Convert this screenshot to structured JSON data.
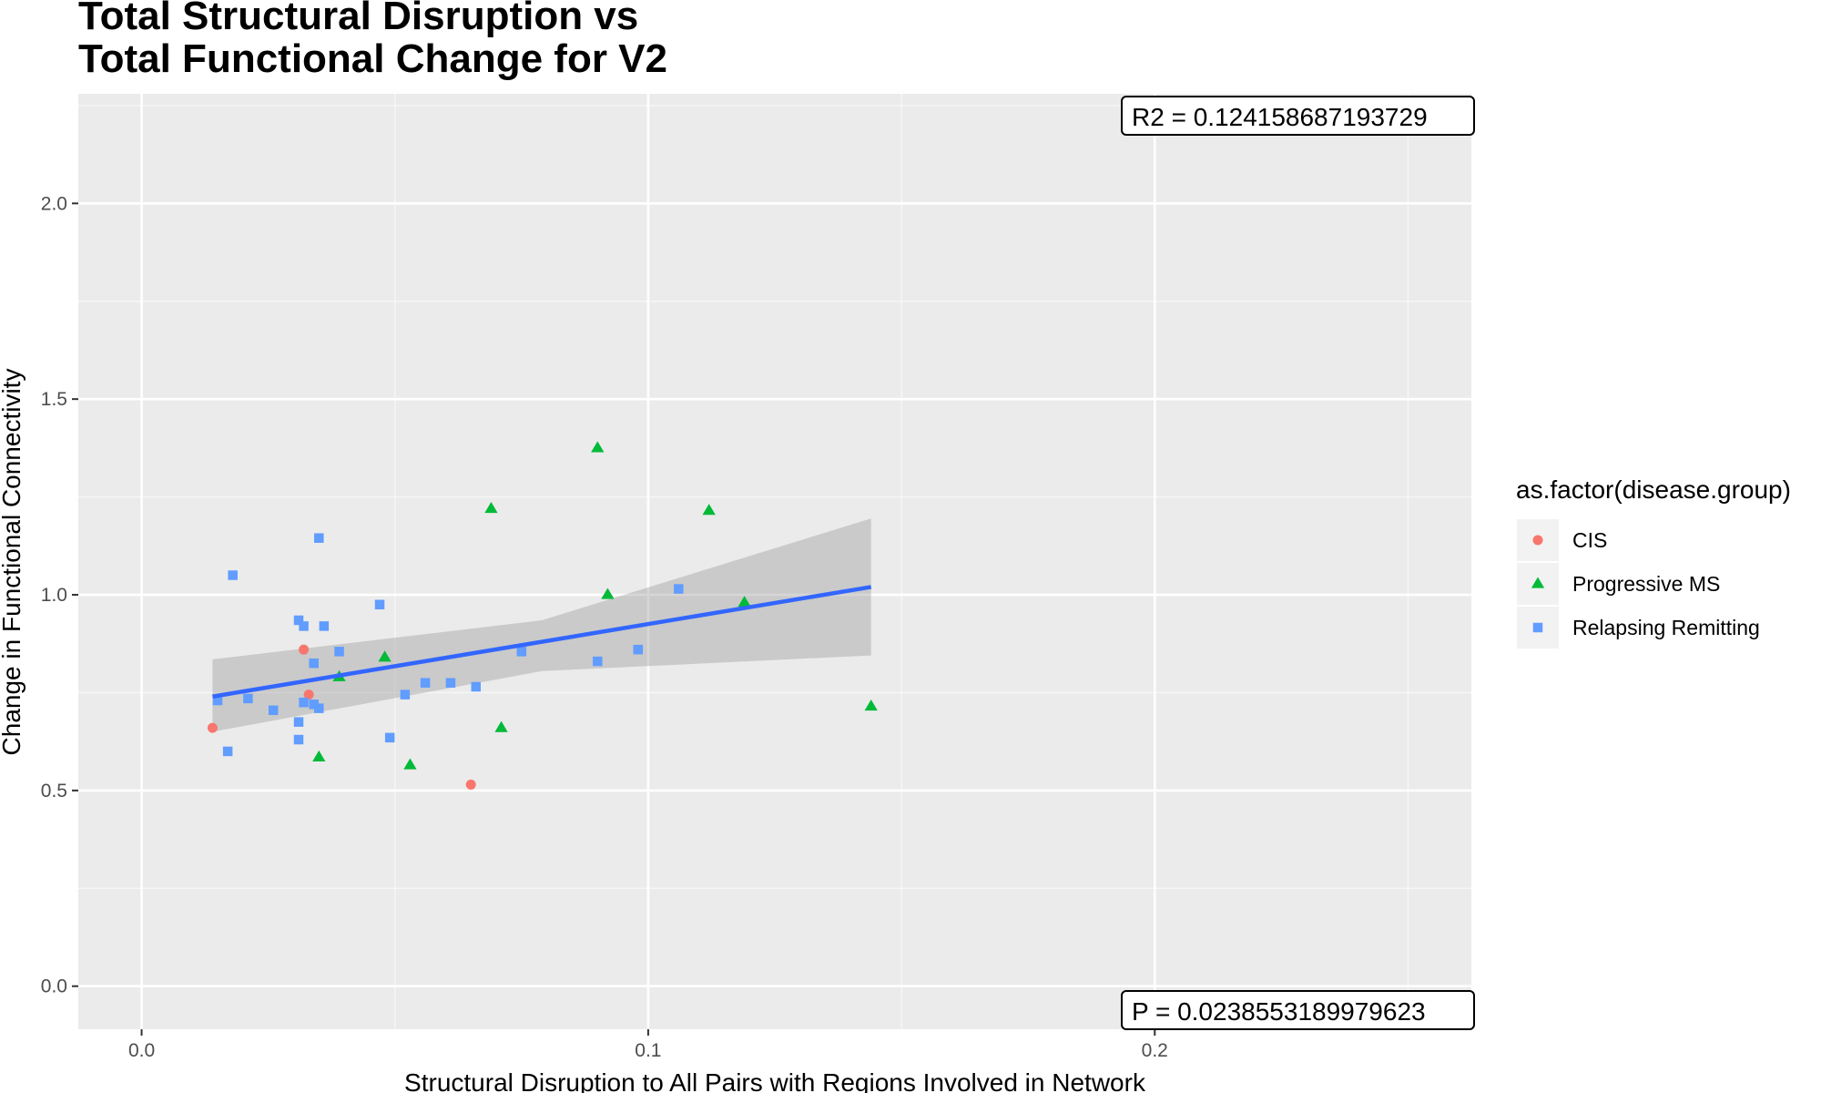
{
  "chart_data": {
    "type": "scatter",
    "title_lines": [
      "Total Structural Disruption vs",
      "Total Functional Change for V2"
    ],
    "xlabel": "Structural Disruption to All Pairs with Regions Involved in Network",
    "ylabel": "Change in Functional Connectivity",
    "xlim": [
      -0.0125,
      0.2625
    ],
    "ylim": [
      -0.11,
      2.28
    ],
    "x_ticks": [
      0.0,
      0.1,
      0.2
    ],
    "x_tick_labels": [
      "0.0",
      "0.1",
      "0.2"
    ],
    "y_ticks": [
      0.0,
      0.5,
      1.0,
      1.5,
      2.0
    ],
    "y_tick_labels": [
      "0.0",
      "0.5",
      "1.0",
      "1.5",
      "2.0"
    ],
    "grid": true,
    "legend": {
      "title": "as.factor(disease.group)",
      "position": "right"
    },
    "series": [
      {
        "name": "CIS",
        "color": "#F8766D",
        "shape": "circle",
        "points": [
          [
            0.014,
            0.66
          ],
          [
            0.032,
            0.86
          ],
          [
            0.033,
            0.745
          ],
          [
            0.065,
            0.515
          ]
        ]
      },
      {
        "name": "Progressive MS",
        "color": "#00BA38",
        "shape": "triangle",
        "points": [
          [
            0.035,
            0.585
          ],
          [
            0.039,
            0.79
          ],
          [
            0.048,
            0.84
          ],
          [
            0.053,
            0.565
          ],
          [
            0.069,
            1.22
          ],
          [
            0.071,
            0.66
          ],
          [
            0.09,
            1.375
          ],
          [
            0.092,
            1.0
          ],
          [
            0.112,
            1.215
          ],
          [
            0.119,
            0.98
          ],
          [
            0.144,
            0.715
          ]
        ]
      },
      {
        "name": "Relapsing Remitting",
        "color": "#619CFF",
        "shape": "square",
        "points": [
          [
            0.015,
            0.73
          ],
          [
            0.017,
            0.6
          ],
          [
            0.018,
            1.05
          ],
          [
            0.021,
            0.735
          ],
          [
            0.026,
            0.705
          ],
          [
            0.031,
            0.935
          ],
          [
            0.031,
            0.675
          ],
          [
            0.031,
            0.63
          ],
          [
            0.032,
            0.92
          ],
          [
            0.032,
            0.725
          ],
          [
            0.034,
            0.825
          ],
          [
            0.034,
            0.72
          ],
          [
            0.035,
            1.145
          ],
          [
            0.035,
            0.71
          ],
          [
            0.036,
            0.92
          ],
          [
            0.039,
            0.855
          ],
          [
            0.047,
            0.975
          ],
          [
            0.049,
            0.635
          ],
          [
            0.052,
            0.745
          ],
          [
            0.056,
            0.775
          ],
          [
            0.061,
            0.775
          ],
          [
            0.066,
            0.765
          ],
          [
            0.075,
            0.855
          ],
          [
            0.09,
            0.83
          ],
          [
            0.098,
            0.86
          ],
          [
            0.106,
            1.015
          ]
        ]
      }
    ],
    "fit": {
      "method": "linear",
      "color": "#3366FF",
      "x_range": [
        0.014,
        0.144
      ],
      "y_at_ends": [
        0.74,
        1.02
      ],
      "ci_lower_at_ends": [
        0.65,
        0.845
      ],
      "ci_upper_at_ends": [
        0.835,
        1.195
      ],
      "ci_mid_x": 0.079,
      "ci_lower_mid": 0.805,
      "ci_upper_mid": 0.935
    },
    "annotations": {
      "r2": "R2 =  0.124158687193729",
      "p": "P =  0.0238553189979623"
    }
  }
}
